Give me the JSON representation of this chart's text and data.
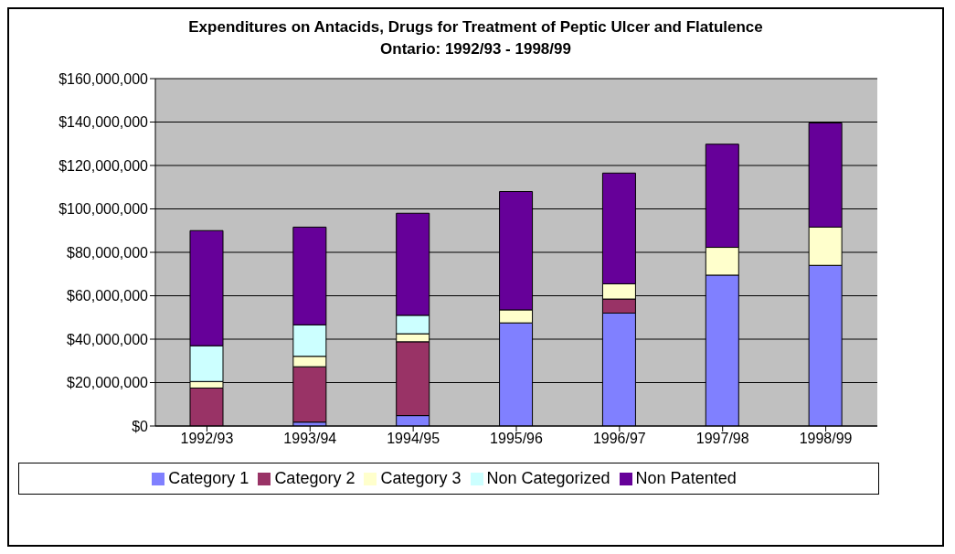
{
  "chart_data": {
    "type": "bar",
    "title": "Expenditures on Antacids, Drugs for Treatment of Peptic Ulcer and Flatulence",
    "subtitle": "Ontario: 1992/93 - 1998/99",
    "categories": [
      "1992/93",
      "1993/94",
      "1994/95",
      "1995/96",
      "1996/97",
      "1997/98",
      "1998/99"
    ],
    "stacked": true,
    "series": [
      {
        "name": "Category 1",
        "color": "#8080ff",
        "values": [
          null,
          1800000,
          4800000,
          47500000,
          52000000,
          69500000,
          74000000
        ]
      },
      {
        "name": "Category 2",
        "color": "#993366",
        "values": [
          17500000,
          25500000,
          34000000,
          0,
          6500000,
          0,
          0
        ]
      },
      {
        "name": "Category 3",
        "color": "#ffffcc",
        "values": [
          3000000,
          4800000,
          3700000,
          6000000,
          7000000,
          12800000,
          17600000
        ]
      },
      {
        "name": "Non Categorized",
        "color": "#ccffff",
        "values": [
          16500000,
          14500000,
          8500000,
          0,
          0,
          0,
          0
        ]
      },
      {
        "name": "Non Patented",
        "color": "#660099",
        "values": [
          53000000,
          45000000,
          47000000,
          54500000,
          51000000,
          47500000,
          48000000
        ]
      }
    ],
    "ylim": [
      0,
      160000000
    ],
    "yticks": [
      {
        "value": 0,
        "label": "$0"
      },
      {
        "value": 20000000,
        "label": "$20,000,000"
      },
      {
        "value": 40000000,
        "label": "$40,000,000"
      },
      {
        "value": 60000000,
        "label": "$60,000,000"
      },
      {
        "value": 80000000,
        "label": "$80,000,000"
      },
      {
        "value": 100000000,
        "label": "$100,000,000"
      },
      {
        "value": 120000000,
        "label": "$120,000,000"
      },
      {
        "value": 140000000,
        "label": "$140,000,000"
      },
      {
        "value": 160000000,
        "label": "$160,000,000"
      }
    ],
    "grid": "y",
    "legend": "bottom"
  }
}
